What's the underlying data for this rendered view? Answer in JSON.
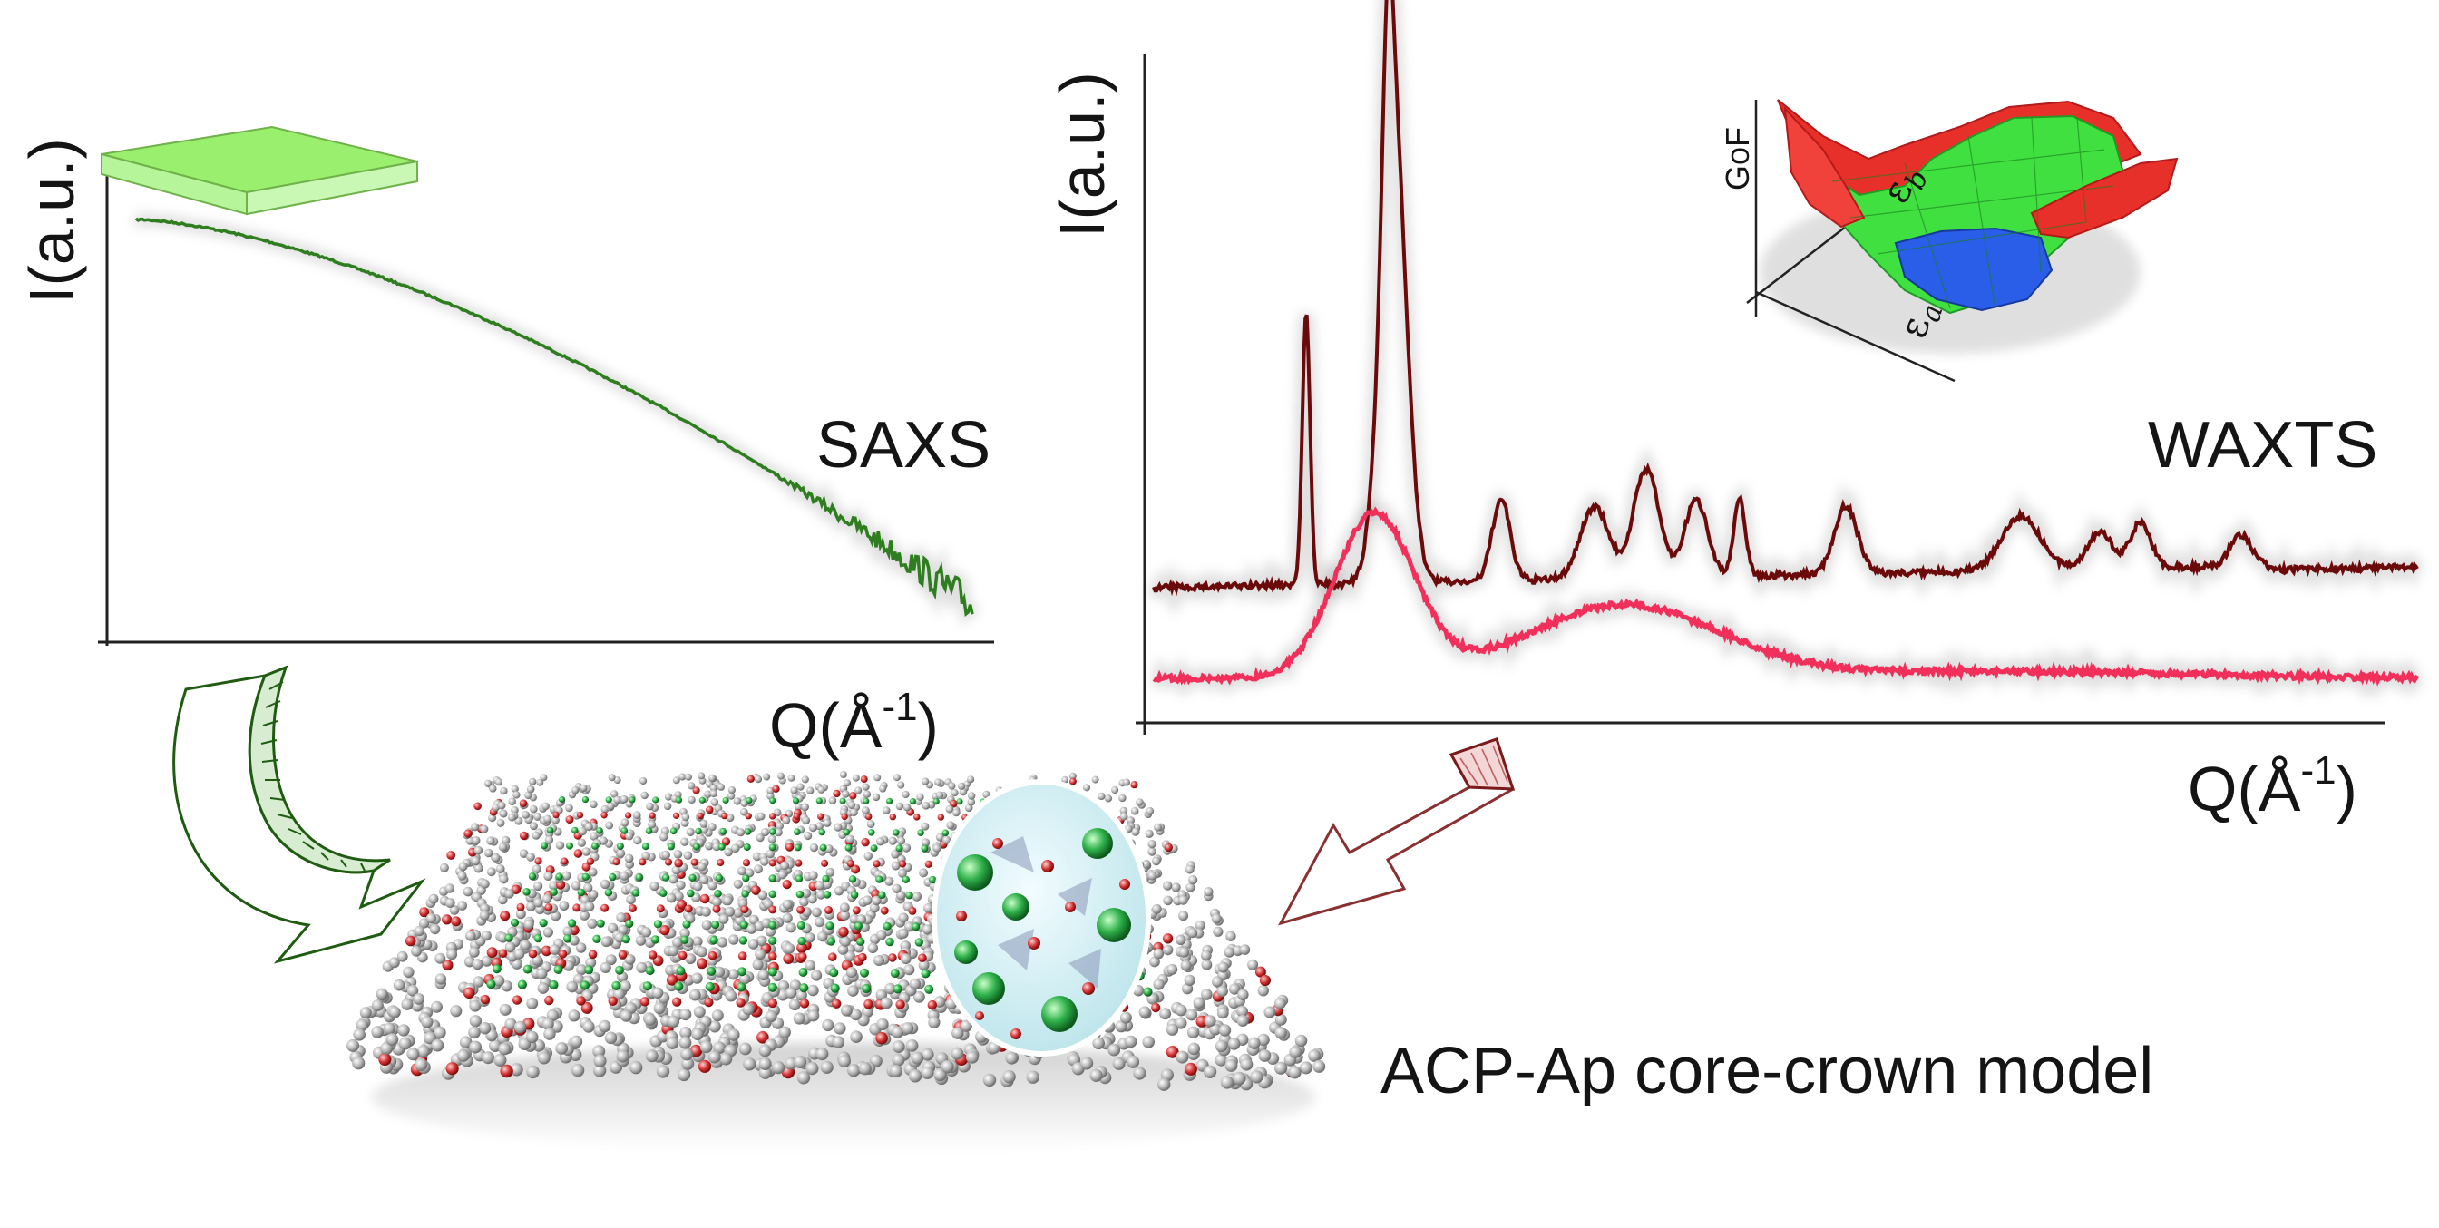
{
  "saxs_panel": {
    "technique": "SAXS",
    "y_axis_label": "I(a.u.)",
    "x_axis_label_base": "Q(Å",
    "x_axis_label_exp": "-1",
    "x_axis_label_close": ")",
    "curve_color": "#2e7d1f"
  },
  "waxts_panel": {
    "technique": "WAXTS",
    "y_axis_label": "I(a.u.)",
    "x_axis_label_base": "Q(Å",
    "x_axis_label_exp": "-1",
    "x_axis_label_close": ")",
    "crystalline_curve_color": "#6b0a0a",
    "amorphous_curve_color": "#f0305a"
  },
  "gof_inset": {
    "z_label": "GoF",
    "eps_symbol": "ε",
    "eps_a_sub": "a",
    "eps_b_sub": "b"
  },
  "model": {
    "caption": "ACP-Ap core-crown model"
  },
  "colors": {
    "green_arrow": "#1f5c12",
    "red_arrow": "#7a1a1a",
    "slab_green": "#8fe86a",
    "atom_green": "#2fb04a",
    "atom_grey": "#9a9a9a"
  }
}
